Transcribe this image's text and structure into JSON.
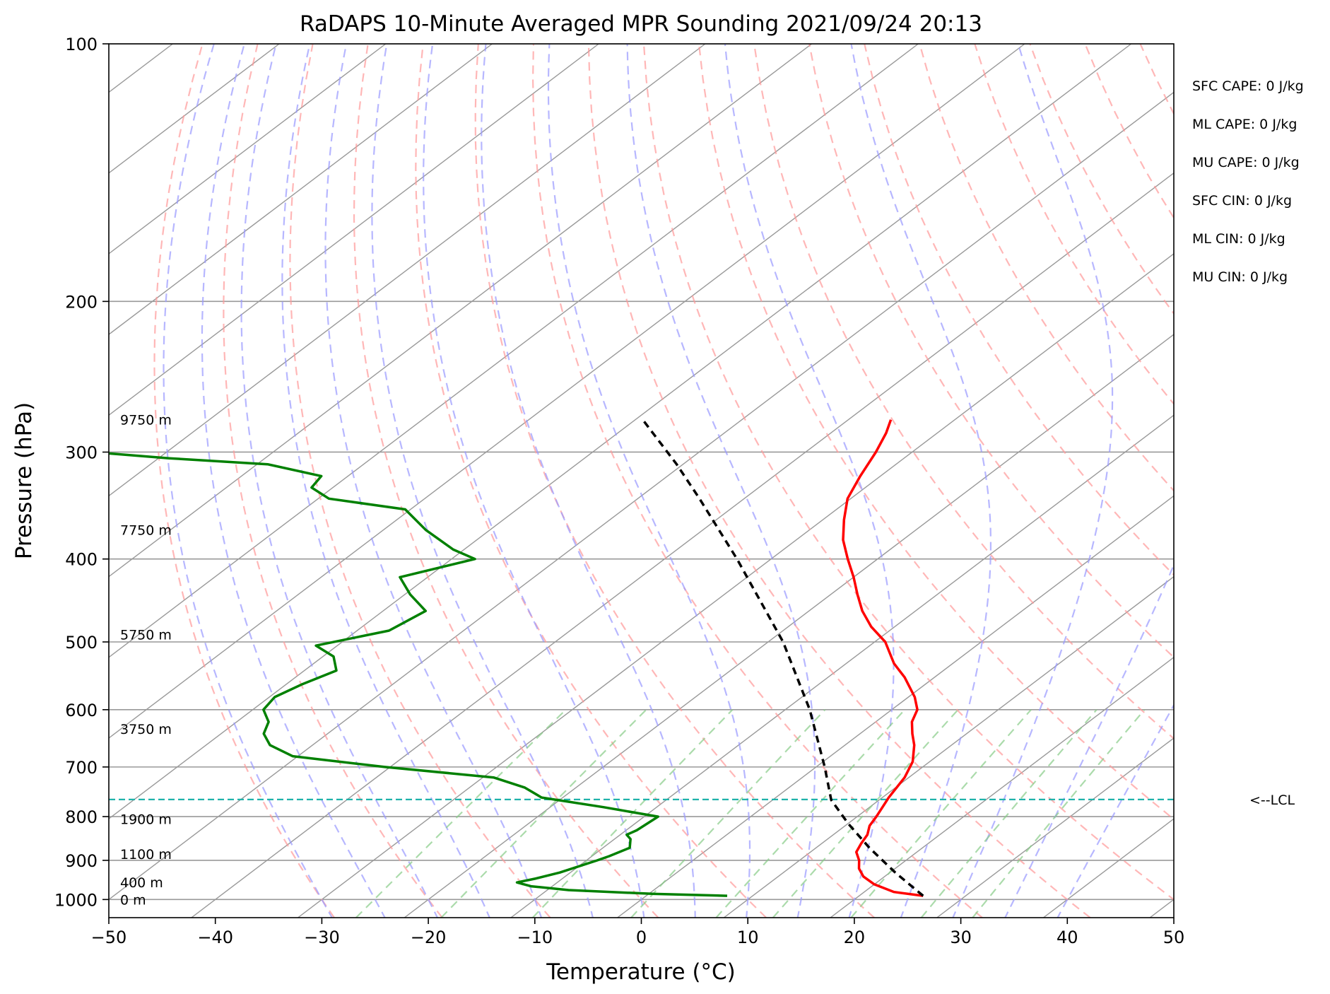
{
  "chart_data": {
    "type": "line",
    "title": "RaDAPS 10-Minute Averaged MPR Sounding 2021/09/24 20:13",
    "xlabel": "Temperature (°C)",
    "ylabel": "Pressure (hPa)",
    "xlim": [
      -50,
      50
    ],
    "ylim": [
      1050,
      100
    ],
    "y_scale": "log",
    "skew_deg_per_decade": 106,
    "grid": true,
    "x_ticks": [
      -50,
      -40,
      -30,
      -20,
      -10,
      0,
      10,
      20,
      30,
      40,
      50
    ],
    "x_tick_labels": [
      "−50",
      "−40",
      "−30",
      "−20",
      "−10",
      "0",
      "10",
      "20",
      "30",
      "40",
      "50"
    ],
    "y_ticks": [
      100,
      200,
      300,
      400,
      500,
      600,
      700,
      800,
      900,
      1000
    ],
    "y_tick_labels": [
      "100",
      "200",
      "300",
      "400",
      "500",
      "600",
      "700",
      "800",
      "900",
      "1000"
    ],
    "series": [
      {
        "role": "temperature",
        "color": "#ff0000",
        "points": [
          [
            990,
            26.0
          ],
          [
            980,
            22.8
          ],
          [
            960,
            20.0
          ],
          [
            940,
            18.0
          ],
          [
            920,
            16.6
          ],
          [
            900,
            15.6
          ],
          [
            880,
            14.3
          ],
          [
            860,
            13.7
          ],
          [
            840,
            13.2
          ],
          [
            820,
            12.3
          ],
          [
            800,
            11.8
          ],
          [
            760,
            10.6
          ],
          [
            720,
            9.6
          ],
          [
            690,
            8.4
          ],
          [
            660,
            6.5
          ],
          [
            640,
            4.9
          ],
          [
            620,
            3.4
          ],
          [
            600,
            2.4
          ],
          [
            580,
            0.6
          ],
          [
            550,
            -2.8
          ],
          [
            530,
            -5.5
          ],
          [
            500,
            -9.0
          ],
          [
            480,
            -12.2
          ],
          [
            460,
            -15.0
          ],
          [
            440,
            -17.5
          ],
          [
            420,
            -20.0
          ],
          [
            400,
            -22.8
          ],
          [
            380,
            -25.6
          ],
          [
            360,
            -28.0
          ],
          [
            340,
            -30.3
          ],
          [
            320,
            -31.9
          ],
          [
            300,
            -33.4
          ],
          [
            285,
            -34.8
          ],
          [
            275,
            -36.0
          ]
        ]
      },
      {
        "role": "dewpoint",
        "color": "#008000",
        "points": [
          [
            990,
            7.6
          ],
          [
            985,
            0.5
          ],
          [
            975,
            -8.0
          ],
          [
            965,
            -12.0
          ],
          [
            955,
            -13.8
          ],
          [
            945,
            -12.5
          ],
          [
            930,
            -11.0
          ],
          [
            900,
            -9.0
          ],
          [
            890,
            -8.4
          ],
          [
            870,
            -7.5
          ],
          [
            850,
            -8.5
          ],
          [
            840,
            -9.4
          ],
          [
            830,
            -9.0
          ],
          [
            800,
            -8.7
          ],
          [
            780,
            -15.0
          ],
          [
            760,
            -22.0
          ],
          [
            740,
            -24.8
          ],
          [
            720,
            -29.0
          ],
          [
            700,
            -40.5
          ],
          [
            680,
            -50.5
          ],
          [
            660,
            -54.0
          ],
          [
            640,
            -56.0
          ],
          [
            620,
            -57.0
          ],
          [
            600,
            -59.0
          ],
          [
            580,
            -59.5
          ],
          [
            560,
            -58.5
          ],
          [
            540,
            -57.0
          ],
          [
            520,
            -59.0
          ],
          [
            505,
            -62.0
          ],
          [
            485,
            -57.0
          ],
          [
            460,
            -56.0
          ],
          [
            440,
            -59.5
          ],
          [
            420,
            -62.6
          ],
          [
            400,
            -57.8
          ],
          [
            390,
            -61.0
          ],
          [
            370,
            -66.0
          ],
          [
            350,
            -70.5
          ],
          [
            340,
            -79.0
          ],
          [
            330,
            -82.0
          ],
          [
            320,
            -82.5
          ],
          [
            310,
            -89.0
          ],
          [
            305,
            -99.0
          ],
          [
            300,
            -107.0
          ]
        ]
      },
      {
        "role": "parcel",
        "color": "#000000",
        "points": [
          [
            990,
            26.0
          ],
          [
            930,
            20.5
          ],
          [
            870,
            15.0
          ],
          [
            815,
            10.0
          ],
          [
            765,
            5.5
          ],
          [
            700,
            0.8
          ],
          [
            600,
            -7.7
          ],
          [
            500,
            -18.6
          ],
          [
            400,
            -33.2
          ],
          [
            340,
            -44.2
          ],
          [
            310,
            -50.6
          ],
          [
            275,
            -59.3
          ]
        ]
      }
    ],
    "lcl_hpa": 764,
    "lcl_label": "<--LCL",
    "height_labels": [
      {
        "text": "0 m",
        "hpa": 1000
      },
      {
        "text": "400 m",
        "hpa": 955
      },
      {
        "text": "1100 m",
        "hpa": 885
      },
      {
        "text": "1900 m",
        "hpa": 805
      },
      {
        "text": "3750 m",
        "hpa": 632
      },
      {
        "text": "5750 m",
        "hpa": 490
      },
      {
        "text": "7750 m",
        "hpa": 370
      },
      {
        "text": "9750 m",
        "hpa": 275
      }
    ],
    "annotations": [
      "SFC CAPE: 0 J/kg",
      "ML CAPE: 0 J/kg",
      "MU CAPE: 0 J/kg",
      "SFC CIN: 0 J/kg",
      "ML CIN: 0 J/kg",
      "MU CIN: 0 J/kg"
    ],
    "colors": {
      "temperature": "#ff0000",
      "dewpoint": "#008000",
      "parcel": "#000000",
      "lcl": "#20b2aa",
      "dry_adiabats": "#ff9999",
      "moist_adiabats": "#9999ff",
      "mixing_ratio": "#88cc88",
      "isotherms": "#999999",
      "isobars": "#999999"
    }
  }
}
